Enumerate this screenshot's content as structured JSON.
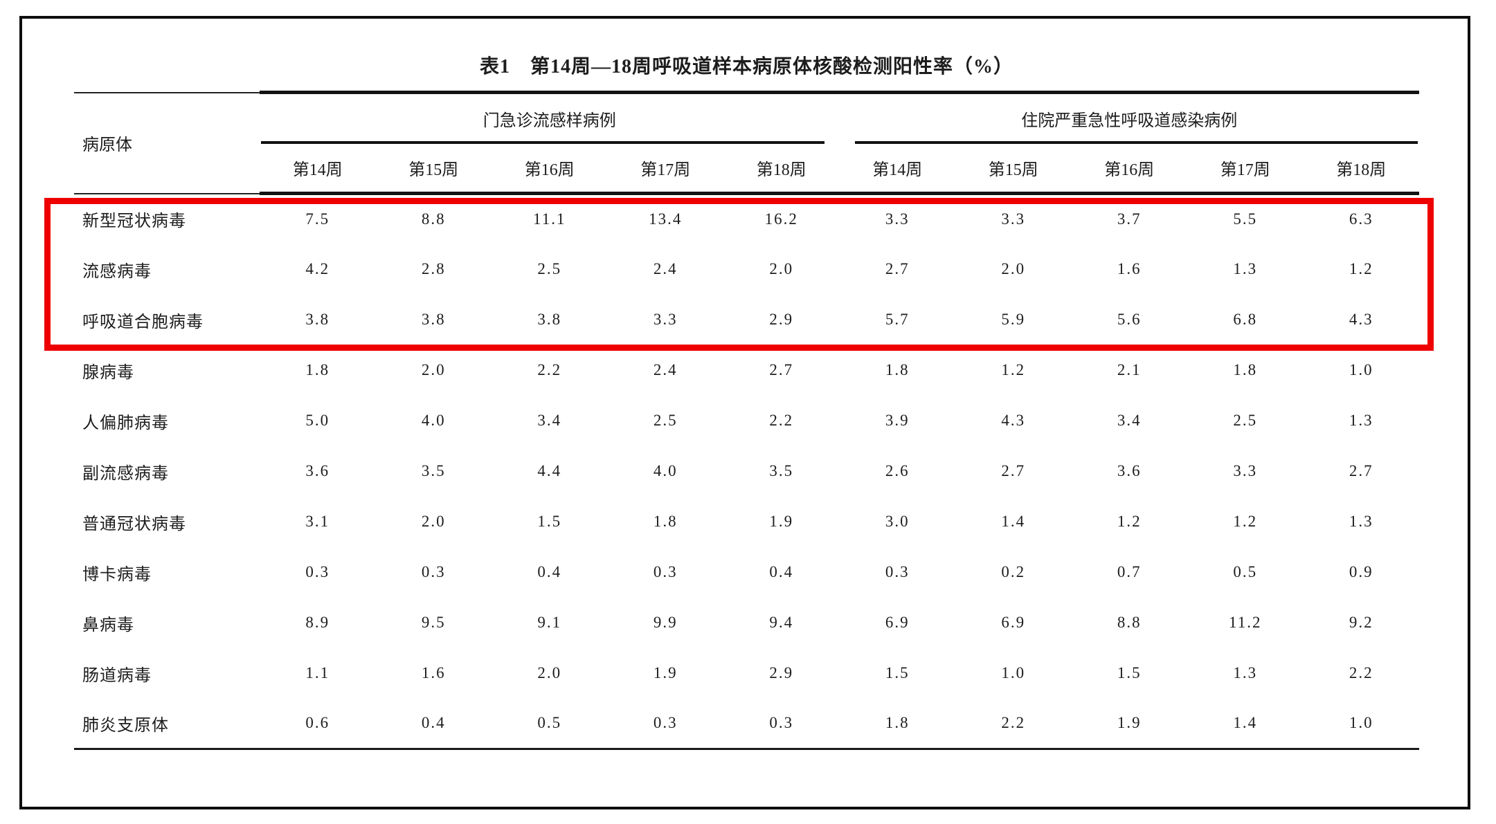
{
  "page": {
    "title": "表1　第14周—18周呼吸道样本病原体核酸检测阳性率（%）"
  },
  "table": {
    "stub_header": "病原体",
    "groups": [
      {
        "label": "门急诊流感样病例"
      },
      {
        "label": "住院严重急性呼吸道感染病例"
      }
    ],
    "week_headers": [
      "第14周",
      "第15周",
      "第16周",
      "第17周",
      "第18周"
    ],
    "rows": [
      {
        "pathogen": "新型冠状病毒",
        "outpatient": [
          "7.5",
          "8.8",
          "11.1",
          "13.4",
          "16.2"
        ],
        "inpatient": [
          "3.3",
          "3.3",
          "3.7",
          "5.5",
          "6.3"
        ],
        "highlighted": true
      },
      {
        "pathogen": "流感病毒",
        "outpatient": [
          "4.2",
          "2.8",
          "2.5",
          "2.4",
          "2.0"
        ],
        "inpatient": [
          "2.7",
          "2.0",
          "1.6",
          "1.3",
          "1.2"
        ],
        "highlighted": true
      },
      {
        "pathogen": "呼吸道合胞病毒",
        "outpatient": [
          "3.8",
          "3.8",
          "3.8",
          "3.3",
          "2.9"
        ],
        "inpatient": [
          "5.7",
          "5.9",
          "5.6",
          "6.8",
          "4.3"
        ],
        "highlighted": true
      },
      {
        "pathogen": "腺病毒",
        "outpatient": [
          "1.8",
          "2.0",
          "2.2",
          "2.4",
          "2.7"
        ],
        "inpatient": [
          "1.8",
          "1.2",
          "2.1",
          "1.8",
          "1.0"
        ],
        "highlighted": false
      },
      {
        "pathogen": "人偏肺病毒",
        "outpatient": [
          "5.0",
          "4.0",
          "3.4",
          "2.5",
          "2.2"
        ],
        "inpatient": [
          "3.9",
          "4.3",
          "3.4",
          "2.5",
          "1.3"
        ],
        "highlighted": false
      },
      {
        "pathogen": "副流感病毒",
        "outpatient": [
          "3.6",
          "3.5",
          "4.4",
          "4.0",
          "3.5"
        ],
        "inpatient": [
          "2.6",
          "2.7",
          "3.6",
          "3.3",
          "2.7"
        ],
        "highlighted": false
      },
      {
        "pathogen": "普通冠状病毒",
        "outpatient": [
          "3.1",
          "2.0",
          "1.5",
          "1.8",
          "1.9"
        ],
        "inpatient": [
          "3.0",
          "1.4",
          "1.2",
          "1.2",
          "1.3"
        ],
        "highlighted": false
      },
      {
        "pathogen": "博卡病毒",
        "outpatient": [
          "0.3",
          "0.3",
          "0.4",
          "0.3",
          "0.4"
        ],
        "inpatient": [
          "0.3",
          "0.2",
          "0.7",
          "0.5",
          "0.9"
        ],
        "highlighted": false
      },
      {
        "pathogen": "鼻病毒",
        "outpatient": [
          "8.9",
          "9.5",
          "9.1",
          "9.9",
          "9.4"
        ],
        "inpatient": [
          "6.9",
          "6.9",
          "8.8",
          "11.2",
          "9.2"
        ],
        "highlighted": false
      },
      {
        "pathogen": "肠道病毒",
        "outpatient": [
          "1.1",
          "1.6",
          "2.0",
          "1.9",
          "2.9"
        ],
        "inpatient": [
          "1.5",
          "1.0",
          "1.5",
          "1.3",
          "2.2"
        ],
        "highlighted": false
      },
      {
        "pathogen": "肺炎支原体",
        "outpatient": [
          "0.6",
          "0.4",
          "0.5",
          "0.3",
          "0.3"
        ],
        "inpatient": [
          "1.8",
          "2.2",
          "1.9",
          "1.4",
          "1.0"
        ],
        "highlighted": false
      }
    ]
  },
  "highlight": {
    "color": "#ee0000",
    "rows_covered": [
      "新型冠状病毒",
      "流感病毒",
      "呼吸道合胞病毒"
    ]
  }
}
